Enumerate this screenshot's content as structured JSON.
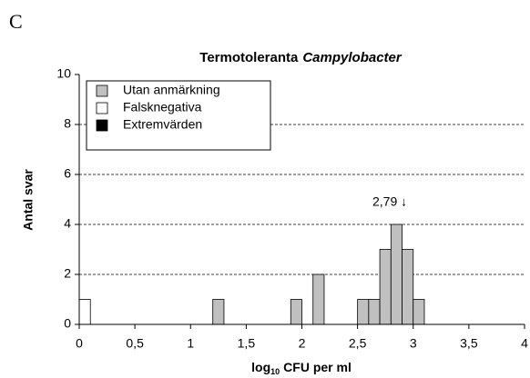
{
  "panel_label": "C",
  "chart_data": {
    "type": "histogram",
    "title": [
      "Termotoleranta",
      "Campylobacter"
    ],
    "xlabel": [
      "log",
      "10",
      "CFU per ml"
    ],
    "ylabel": "Antal svar",
    "bins": [
      0,
      0.1,
      0.2,
      0.3,
      0.4,
      0.5,
      0.6,
      0.7,
      0.8,
      0.9,
      1,
      1.1,
      1.2,
      1.3,
      1.4,
      1.5,
      1.6,
      1.7,
      1.8,
      1.9,
      2,
      2.1,
      2.2,
      2.3,
      2.4,
      2.5,
      2.6,
      2.7,
      2.8,
      2.9,
      3,
      3.1,
      3.2,
      3.3,
      3.4,
      3.5,
      3.6,
      3.7,
      3.8,
      3.9,
      4
    ],
    "series": [
      {
        "name": "Utan anmärkning",
        "color": "#c0c0c0",
        "values": [
          0,
          0,
          0,
          0,
          0,
          0,
          0,
          0,
          0,
          0,
          0,
          0,
          1,
          0,
          0,
          0,
          0,
          0,
          0,
          1,
          0,
          2,
          0,
          0,
          0,
          1,
          1,
          3,
          4,
          3,
          1,
          0,
          0,
          0,
          0,
          0,
          0,
          0,
          0,
          0
        ]
      },
      {
        "name": "Falsknegativa",
        "color": "#ffffff",
        "values": [
          1,
          0,
          0,
          0,
          0,
          0,
          0,
          0,
          0,
          0,
          0,
          0,
          0,
          0,
          0,
          0,
          0,
          0,
          0,
          0,
          0,
          0,
          0,
          0,
          0,
          0,
          0,
          0,
          0,
          0,
          0,
          0,
          0,
          0,
          0,
          0,
          0,
          0,
          0,
          0
        ]
      },
      {
        "name": "Extremvärden",
        "color": "#000000",
        "values": [
          0,
          0,
          0,
          0,
          0,
          0,
          0,
          0,
          0,
          0,
          0,
          0,
          0,
          0,
          0,
          0,
          0,
          0,
          0,
          0,
          0,
          0,
          0,
          0,
          0,
          0,
          0,
          0,
          0,
          0,
          0,
          0,
          0,
          0,
          0,
          0,
          0,
          0,
          0,
          0
        ]
      }
    ],
    "xlim": [
      0,
      4
    ],
    "xticks": [
      0,
      {
        "value": 0.5,
        "label": "0,5"
      },
      1,
      {
        "value": 1.5,
        "label": "1,5"
      },
      2,
      {
        "value": 2.5,
        "label": "2,5"
      },
      3,
      {
        "value": 3.5,
        "label": "3,5"
      },
      4
    ],
    "ylim": [
      0,
      10
    ],
    "yticks": [
      0,
      2,
      4,
      6,
      8,
      10
    ],
    "grid": true,
    "legend": "upper left",
    "annotations": [
      {
        "text": "2,79 ↓",
        "x": 2.79
      }
    ]
  }
}
